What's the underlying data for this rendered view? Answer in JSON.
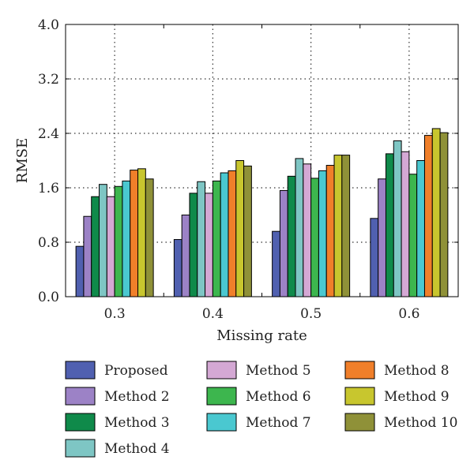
{
  "chart_data": {
    "type": "bar",
    "xlabel": "Missing rate",
    "ylabel": "RMSE",
    "ylim": [
      0,
      4.0
    ],
    "yticks": [
      "0.0",
      "0.8",
      "1.6",
      "2.4",
      "3.2",
      "4.0"
    ],
    "categories": [
      "0.3",
      "0.4",
      "0.5",
      "0.6"
    ],
    "grid": true,
    "legend_position": "bottom",
    "series": [
      {
        "name": "Proposed",
        "color": "#5060b0",
        "values": [
          0.74,
          0.84,
          0.96,
          1.15
        ]
      },
      {
        "name": "Method 2",
        "color": "#9c82c6",
        "values": [
          1.18,
          1.2,
          1.56,
          1.73
        ]
      },
      {
        "name": "Method 3",
        "color": "#0f8a4a",
        "values": [
          1.47,
          1.52,
          1.77,
          2.1
        ]
      },
      {
        "name": "Method 4",
        "color": "#7ec6c4",
        "values": [
          1.65,
          1.69,
          2.03,
          2.29
        ]
      },
      {
        "name": "Method 5",
        "color": "#d4a8d4",
        "values": [
          1.47,
          1.52,
          1.95,
          2.13
        ]
      },
      {
        "name": "Method 6",
        "color": "#3db64e",
        "values": [
          1.62,
          1.7,
          1.74,
          1.8
        ]
      },
      {
        "name": "Method 7",
        "color": "#4ac8d0",
        "values": [
          1.7,
          1.82,
          1.85,
          2.0
        ]
      },
      {
        "name": "Method 8",
        "color": "#f07f2a",
        "values": [
          1.86,
          1.85,
          1.93,
          2.37
        ]
      },
      {
        "name": "Method 9",
        "color": "#c8c62e",
        "values": [
          1.88,
          2.0,
          2.08,
          2.47
        ]
      },
      {
        "name": "Method 10",
        "color": "#8f9138",
        "values": [
          1.73,
          1.92,
          2.08,
          2.41
        ]
      }
    ]
  }
}
